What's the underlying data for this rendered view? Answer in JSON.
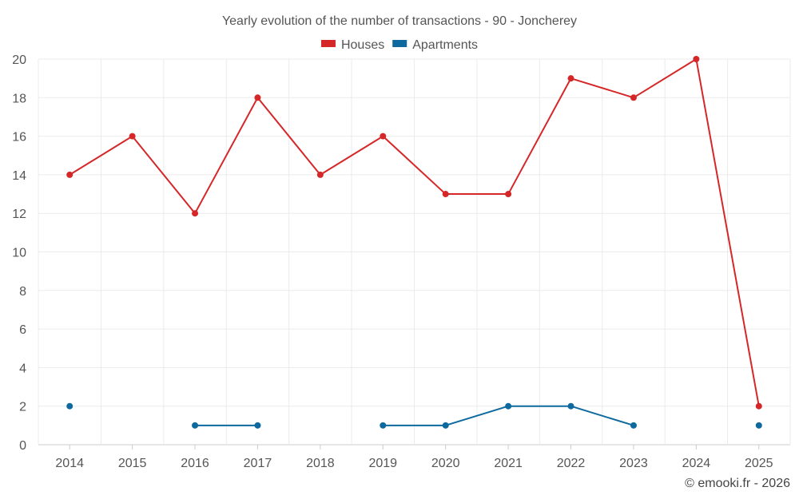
{
  "chart_data": {
    "type": "line",
    "title": "Yearly evolution of the number of transactions - 90 - Joncherey",
    "categories": [
      "2014",
      "2015",
      "2016",
      "2017",
      "2018",
      "2019",
      "2020",
      "2021",
      "2022",
      "2023",
      "2024",
      "2025"
    ],
    "series": [
      {
        "name": "Houses",
        "color": "#d62728",
        "values": [
          14,
          16,
          12,
          18,
          14,
          16,
          13,
          13,
          19,
          18,
          20,
          2
        ]
      },
      {
        "name": "Apartments",
        "color": "#0e6a9e",
        "values": [
          2,
          null,
          1,
          1,
          null,
          1,
          1,
          2,
          2,
          1,
          null,
          1
        ]
      }
    ],
    "yticks": [
      0,
      2,
      4,
      6,
      8,
      10,
      12,
      14,
      16,
      18,
      20
    ],
    "ylim": [
      0,
      20
    ],
    "grid": true,
    "legend": "top-center",
    "xlabel": "",
    "ylabel": ""
  },
  "credit": "© emooki.fr - 2026"
}
